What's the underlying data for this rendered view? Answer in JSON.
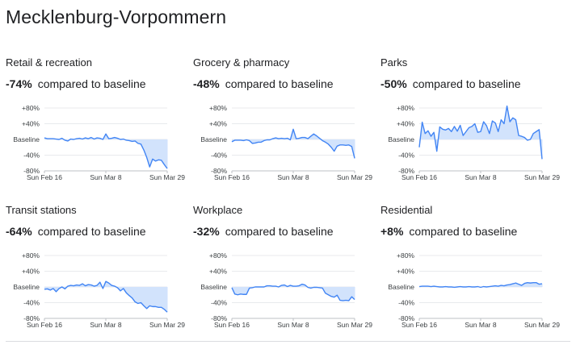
{
  "page": {
    "title": "Mecklenburg-Vorpommern"
  },
  "colors": {
    "line": "#4285f4",
    "fill": "#d2e3fc",
    "grid": "#e8eaed",
    "axis": "#bdc1c6",
    "text": "#3c4043"
  },
  "chart_data": [
    {
      "type": "area",
      "title": "Retail & recreation",
      "change": "-74%",
      "change_label": "compared to baseline",
      "y_ticks": [
        "+80%",
        "+40%",
        "Baseline",
        "-40%",
        "-80%"
      ],
      "x_ticks": [
        "Sun Feb 16",
        "Sun Mar 8",
        "Sun Mar 29"
      ],
      "ylim": [
        -80,
        80
      ],
      "values": [
        4,
        2,
        2,
        2,
        1,
        0,
        3,
        -2,
        -4,
        1,
        0,
        2,
        3,
        1,
        4,
        2,
        5,
        1,
        4,
        3,
        0,
        14,
        2,
        3,
        5,
        3,
        0,
        1,
        -2,
        -3,
        -5,
        -4,
        -10,
        -12,
        -27,
        -46,
        -70,
        -50,
        -55,
        -52,
        -53,
        -64,
        -74
      ]
    },
    {
      "type": "area",
      "title": "Grocery & pharmacy",
      "change": "-48%",
      "change_label": "compared to baseline",
      "y_ticks": [
        "+80%",
        "+40%",
        "Baseline",
        "-40%",
        "-80%"
      ],
      "x_ticks": [
        "Sun Feb 16",
        "Sun Mar 8",
        "Sun Mar 29"
      ],
      "ylim": [
        -80,
        80
      ],
      "values": [
        -6,
        -2,
        -2,
        -2,
        -3,
        -1,
        -3,
        -10,
        -9,
        -7,
        -7,
        -3,
        -1,
        -1,
        2,
        4,
        2,
        3,
        2,
        3,
        -1,
        26,
        2,
        3,
        5,
        5,
        2,
        8,
        14,
        9,
        3,
        -3,
        -7,
        -12,
        -20,
        -30,
        -17,
        -14,
        -14,
        -15,
        -14,
        -18,
        -48
      ]
    },
    {
      "type": "area",
      "title": "Parks",
      "change": "-50%",
      "change_label": "compared to baseline",
      "y_ticks": [
        "+80%",
        "+40%",
        "Baseline",
        "-40%",
        "-80%"
      ],
      "x_ticks": [
        "Sun Feb 16",
        "Sun Mar 8",
        "Sun Mar 29"
      ],
      "ylim": [
        -80,
        80
      ],
      "values": [
        -20,
        44,
        15,
        22,
        8,
        18,
        -30,
        32,
        26,
        24,
        28,
        20,
        33,
        21,
        36,
        10,
        20,
        30,
        33,
        40,
        18,
        20,
        45,
        35,
        15,
        47,
        42,
        20,
        50,
        40,
        85,
        45,
        55,
        50,
        10,
        8,
        5,
        -2,
        0,
        15,
        20,
        25,
        -50
      ]
    },
    {
      "type": "area",
      "title": "Transit stations",
      "change": "-64%",
      "change_label": "compared to baseline",
      "y_ticks": [
        "+80%",
        "+40%",
        "Baseline",
        "-40%",
        "-80%"
      ],
      "x_ticks": [
        "Sun Feb 16",
        "Sun Mar 8",
        "Sun Mar 29"
      ],
      "ylim": [
        -80,
        80
      ],
      "values": [
        -6,
        -5,
        -8,
        -4,
        -12,
        -4,
        0,
        -5,
        2,
        4,
        3,
        5,
        4,
        8,
        3,
        6,
        5,
        2,
        4,
        12,
        -4,
        14,
        10,
        4,
        2,
        -2,
        -10,
        -4,
        -15,
        -22,
        -28,
        -38,
        -42,
        -40,
        -48,
        -55,
        -48,
        -50,
        -50,
        -52,
        -52,
        -57,
        -64
      ]
    },
    {
      "type": "area",
      "title": "Workplace",
      "change": "-32%",
      "change_label": "compared to baseline",
      "y_ticks": [
        "+80%",
        "+40%",
        "Baseline",
        "-40%",
        "-80%"
      ],
      "x_ticks": [
        "Sun Feb 16",
        "Sun Mar 8",
        "Sun Mar 29"
      ],
      "ylim": [
        -80,
        80
      ],
      "values": [
        -2,
        -18,
        -20,
        -18,
        -19,
        -19,
        -3,
        -2,
        0,
        0,
        0,
        0,
        3,
        3,
        2,
        2,
        0,
        4,
        5,
        1,
        4,
        2,
        2,
        3,
        7,
        5,
        -1,
        -3,
        -1,
        -1,
        -2,
        -3,
        -16,
        -20,
        -24,
        -26,
        -21,
        -34,
        -35,
        -34,
        -35,
        -25,
        -32
      ]
    },
    {
      "type": "area",
      "title": "Residential",
      "change": "+8%",
      "change_label": "compared to baseline",
      "y_ticks": [
        "+80%",
        "+40%",
        "Baseline",
        "-40%",
        "-80%"
      ],
      "x_ticks": [
        "Sun Feb 16",
        "Sun Mar 8",
        "Sun Mar 29"
      ],
      "ylim": [
        -80,
        80
      ],
      "values": [
        1,
        2,
        2,
        2,
        1,
        2,
        1,
        0,
        0,
        1,
        0,
        0,
        -1,
        0,
        1,
        0,
        0,
        1,
        0,
        0,
        1,
        -1,
        1,
        0,
        1,
        2,
        3,
        2,
        4,
        3,
        5,
        6,
        8,
        10,
        7,
        4,
        9,
        11,
        10,
        11,
        11,
        7,
        8
      ]
    }
  ]
}
